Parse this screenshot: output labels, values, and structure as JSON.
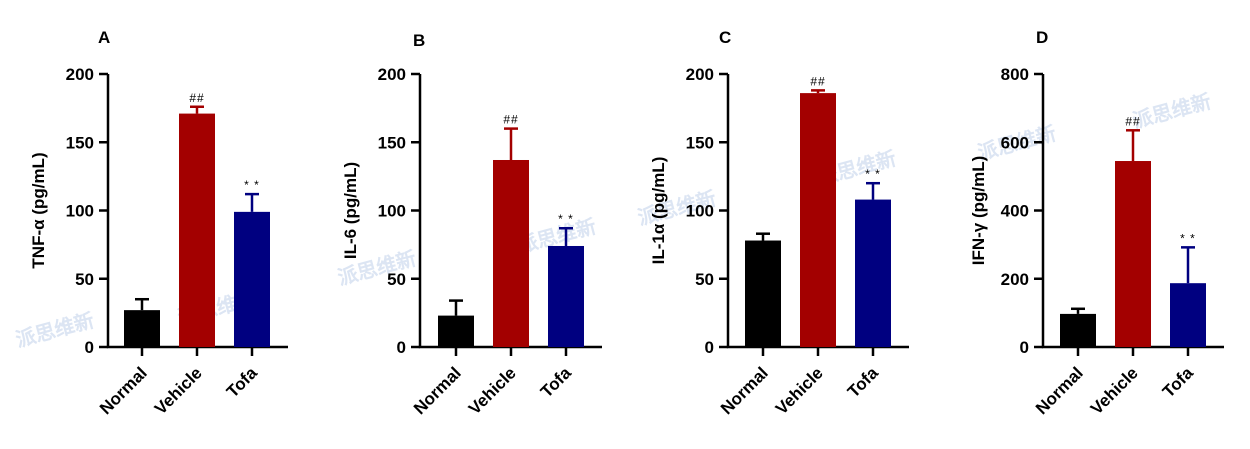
{
  "watermark": "派思维新",
  "colors": {
    "Normal": "#000000",
    "Vehicle": "#a30000",
    "Tofa": "#000080"
  },
  "chart_data": [
    {
      "type": "bar",
      "panel": "A",
      "ylabel": "TNF-α (pg/mL)",
      "categories": [
        "Normal",
        "Vehicle",
        "Tofa"
      ],
      "values": [
        27,
        171,
        99
      ],
      "errors": [
        8,
        5,
        13
      ],
      "annotations": [
        "",
        "##",
        "* *"
      ],
      "ylim": [
        0,
        200
      ],
      "yticks": [
        0,
        50,
        100,
        150,
        200
      ]
    },
    {
      "type": "bar",
      "panel": "B",
      "ylabel": "IL-6 (pg/mL)",
      "categories": [
        "Normal",
        "Vehicle",
        "Tofa"
      ],
      "values": [
        23,
        137,
        74
      ],
      "errors": [
        11,
        23,
        13
      ],
      "annotations": [
        "",
        "##",
        "* *"
      ],
      "ylim": [
        0,
        200
      ],
      "yticks": [
        0,
        50,
        100,
        150,
        200
      ]
    },
    {
      "type": "bar",
      "panel": "C",
      "ylabel": "IL-1α (pg/mL)",
      "categories": [
        "Normal",
        "Vehicle",
        "Tofa"
      ],
      "values": [
        78,
        186,
        108
      ],
      "errors": [
        5,
        2,
        12
      ],
      "annotations": [
        "",
        "##",
        "* *"
      ],
      "ylim": [
        0,
        200
      ],
      "yticks": [
        0,
        50,
        100,
        150,
        200
      ]
    },
    {
      "type": "bar",
      "panel": "D",
      "ylabel": "IFN-γ (pg/mL)",
      "categories": [
        "Normal",
        "Vehicle",
        "Tofa"
      ],
      "values": [
        97,
        545,
        187
      ],
      "errors": [
        15,
        90,
        105
      ],
      "annotations": [
        "",
        "##",
        "* *"
      ],
      "ylim": [
        0,
        800
      ],
      "yticks": [
        0,
        200,
        400,
        600,
        800
      ]
    }
  ]
}
